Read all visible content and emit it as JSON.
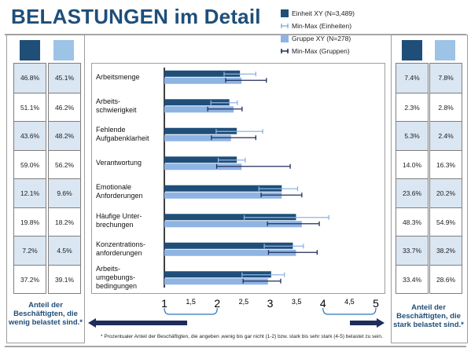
{
  "title": "BELASTUNGEN im Detail",
  "legend": [
    {
      "label": "Einheit XY (N=3,489)",
      "kind": "bar",
      "color": "#1f4e79"
    },
    {
      "label": "Min-Max (Einheiten)",
      "kind": "range",
      "color": "#8eb4e3"
    },
    {
      "label": "Gruppe XY (N=278)",
      "kind": "bar",
      "color": "#8eb4e3"
    },
    {
      "label": "Min-Max (Gruppen)",
      "kind": "range",
      "color": "#1f2d5c"
    }
  ],
  "colors": {
    "dark": "#1f4e79",
    "light": "#9dc3e6",
    "bar_light": "#8eb4e3",
    "range_dark": "#1f2d5c",
    "shade": "#dae6f2"
  },
  "left_table": {
    "unit": [
      "46.8%",
      "51.1%",
      "43.6%",
      "59.0%",
      "12.1%",
      "19.8%",
      "7.2%",
      "37.2%"
    ],
    "group": [
      "45.1%",
      "46.2%",
      "48.2%",
      "56.2%",
      "9.6%",
      "18.2%",
      "4.5%",
      "39.1%"
    ],
    "note": "Anteil der Beschäftigten, die wenig belastet sind.*"
  },
  "right_table": {
    "unit": [
      "7.4%",
      "2.3%",
      "5.3%",
      "14.0%",
      "23.6%",
      "48.3%",
      "33.7%",
      "33.4%"
    ],
    "group": [
      "7.8%",
      "2.8%",
      "2.4%",
      "16.3%",
      "20.2%",
      "54.9%",
      "38.2%",
      "28.6%"
    ],
    "note": "Anteil der Beschäftigten, die stark belastet sind.*"
  },
  "chart_data": {
    "type": "bar",
    "orientation": "horizontal",
    "xlim": [
      1,
      5
    ],
    "x_major_ticks": [
      "1",
      "2",
      "3",
      "4",
      "5"
    ],
    "x_minor_ticks": [
      "1,5",
      "2,5",
      "3,5",
      "4,5"
    ],
    "categories": [
      [
        "Arbeitsmenge"
      ],
      [
        "Arbeits-",
        "schwierigkeit"
      ],
      [
        "Fehlende",
        "Aufgabenklarheit"
      ],
      [
        "Verantwortung"
      ],
      [
        "Emotionale",
        "Anforderungen"
      ],
      [
        "Häufige Unter-",
        "brechungen"
      ],
      [
        "Konzentrations-",
        "anforderungen"
      ],
      [
        "Arbeits-",
        "umgebungs-",
        "bedingungen"
      ]
    ],
    "series": [
      {
        "name": "Einheit XY (N=3,489)",
        "values": [
          2.43,
          2.23,
          2.37,
          2.37,
          3.22,
          3.49,
          3.43,
          3.02
        ],
        "min": [
          2.13,
          1.88,
          1.98,
          2.02,
          2.79,
          2.51,
          2.89,
          2.47
        ],
        "max": [
          2.73,
          2.38,
          2.86,
          2.53,
          3.52,
          4.11,
          3.63,
          3.27
        ]
      },
      {
        "name": "Gruppe XY (N=278)",
        "values": [
          2.46,
          2.31,
          2.26,
          2.46,
          3.22,
          3.6,
          3.49,
          2.96
        ],
        "min": [
          2.16,
          1.82,
          1.89,
          1.99,
          2.83,
          2.95,
          2.97,
          2.49
        ],
        "max": [
          2.93,
          2.47,
          2.73,
          3.38,
          3.6,
          3.93,
          3.89,
          3.2
        ]
      }
    ]
  },
  "footnote": "* Prozentualer Anteil der Beschäftigten, die angeben ‚wenig bis gar nicht (1-2) bzw. stark bis sehr stark (4-5) belastet zu sein."
}
